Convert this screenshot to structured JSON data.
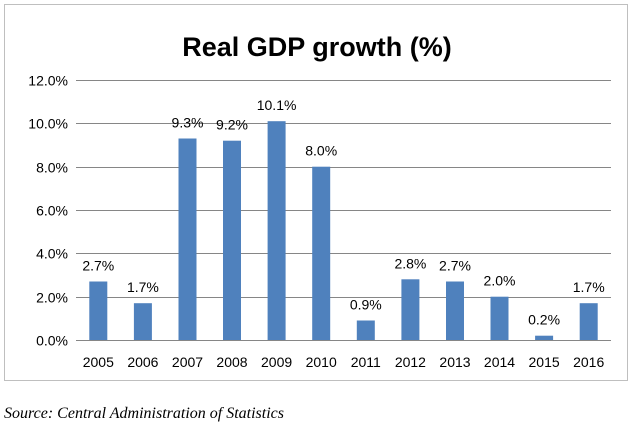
{
  "chart_data": {
    "type": "bar",
    "title": "Real GDP growth (%)",
    "xlabel": "",
    "ylabel": "",
    "categories": [
      "2005",
      "2006",
      "2007",
      "2008",
      "2009",
      "2010",
      "2011",
      "2012",
      "2013",
      "2014",
      "2015",
      "2016"
    ],
    "values": [
      2.7,
      1.7,
      9.3,
      9.2,
      10.1,
      8.0,
      0.9,
      2.8,
      2.7,
      2.0,
      0.2,
      1.7
    ],
    "data_labels": [
      "2.7%",
      "1.7%",
      "9.3%",
      "9.2%",
      "10.1%",
      "8.0%",
      "0.9%",
      "2.8%",
      "2.7%",
      "2.0%",
      "0.2%",
      "1.7%"
    ],
    "ylim": [
      0,
      12
    ],
    "y_ticks": [
      0,
      2,
      4,
      6,
      8,
      10,
      12
    ],
    "y_tick_labels": [
      "0.0%",
      "2.0%",
      "4.0%",
      "6.0%",
      "8.0%",
      "10.0%",
      "12.0%"
    ],
    "grid": true,
    "legend": false,
    "bar_color": "#4f81bd",
    "gridline_color": "#868686"
  },
  "source_note": "Source: Central Administration of Statistics"
}
